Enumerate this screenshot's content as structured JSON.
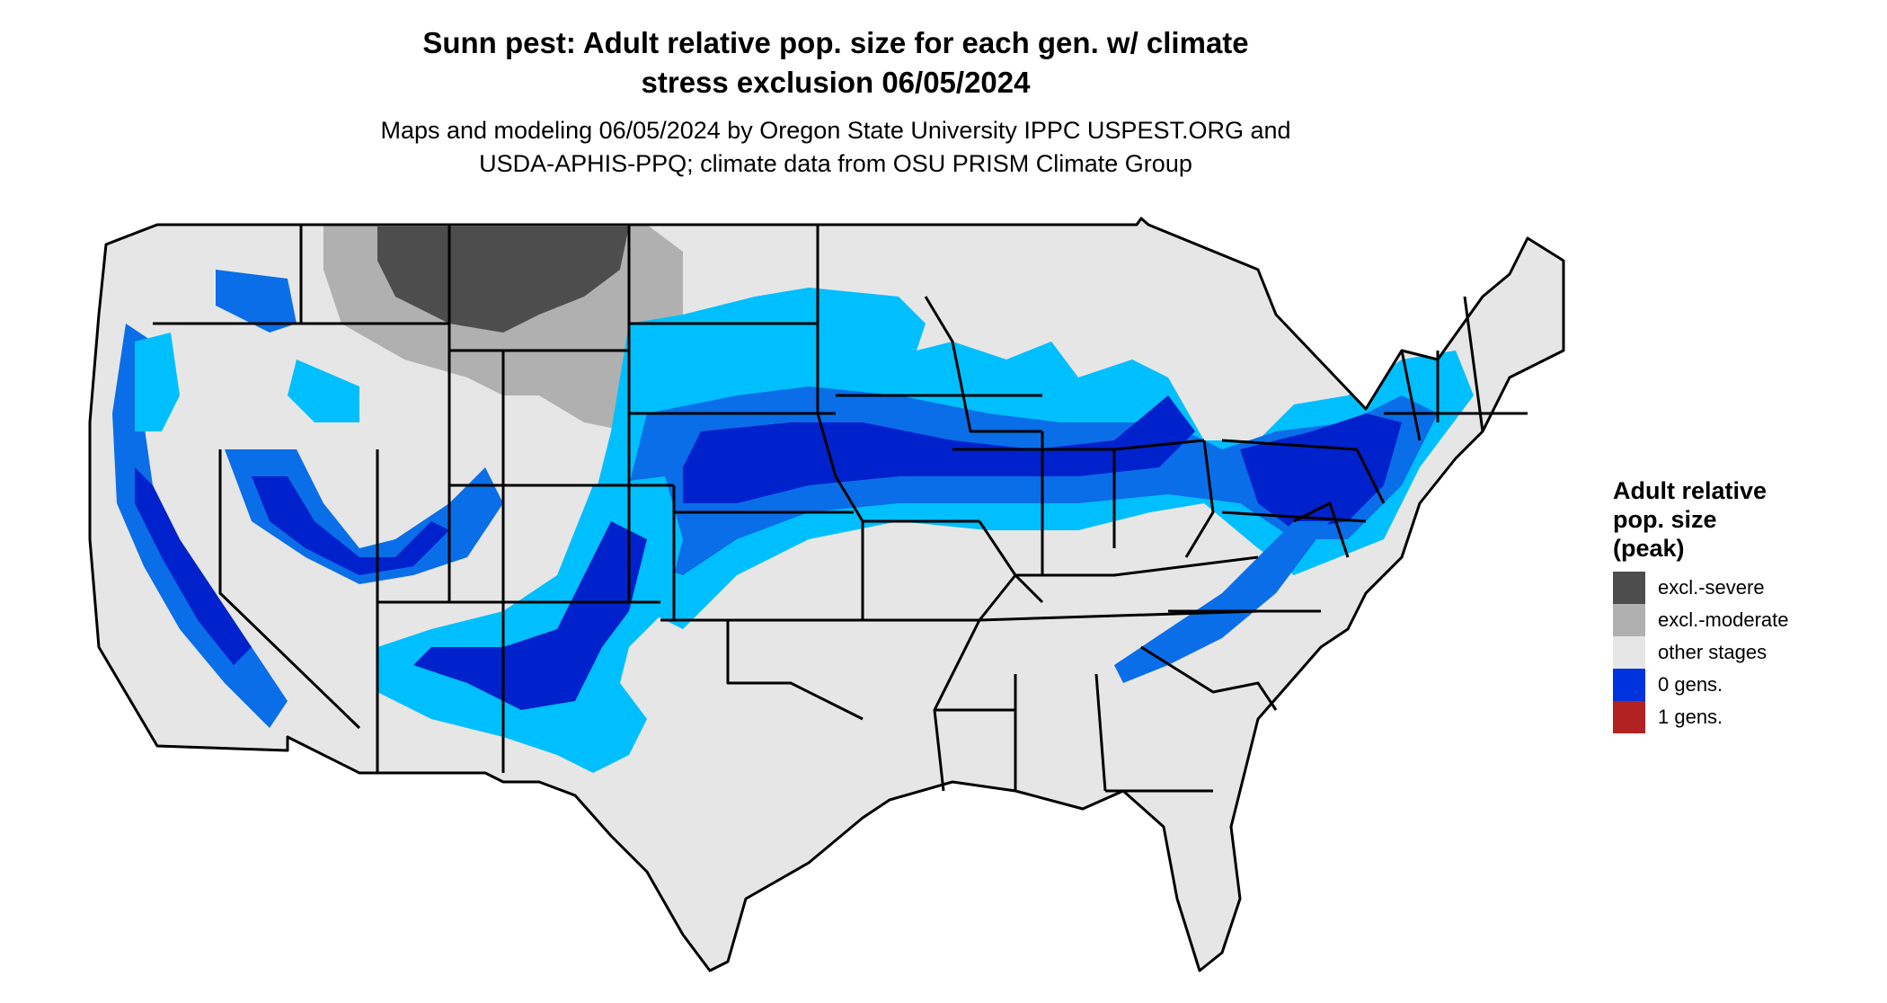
{
  "title_line1": "Sunn pest: Adult relative pop. size for each gen. w/ climate",
  "title_line2": "stress exclusion 06/05/2024",
  "subtitle_line1": "Maps and modeling 06/05/2024 by Oregon State University IPPC USPEST.ORG and",
  "subtitle_line2": "USDA-APHIS-PPQ; climate data from OSU PRISM Climate Group",
  "legend": {
    "title_line1": "Adult relative",
    "title_line2": "pop. size",
    "title_line3": "(peak)",
    "items": [
      {
        "label": "excl.-severe",
        "color": "#4d4d4d"
      },
      {
        "label": "excl.-moderate",
        "color": "#b0b0b0"
      },
      {
        "label": "other stages",
        "color": "#e6e6e6"
      },
      {
        "label": "0 gens.",
        "color": "#0033dd"
      },
      {
        "label": "1 gens.",
        "color": "#b22222"
      }
    ]
  },
  "map_colors": {
    "base": "#e6e6e6",
    "light_blue": "#00bfff",
    "medium_blue": "#0a6ee8",
    "deep_blue": "#0022cc",
    "dark_gray": "#4d4d4d",
    "light_gray": "#b0b0b0",
    "border": "#000000"
  }
}
